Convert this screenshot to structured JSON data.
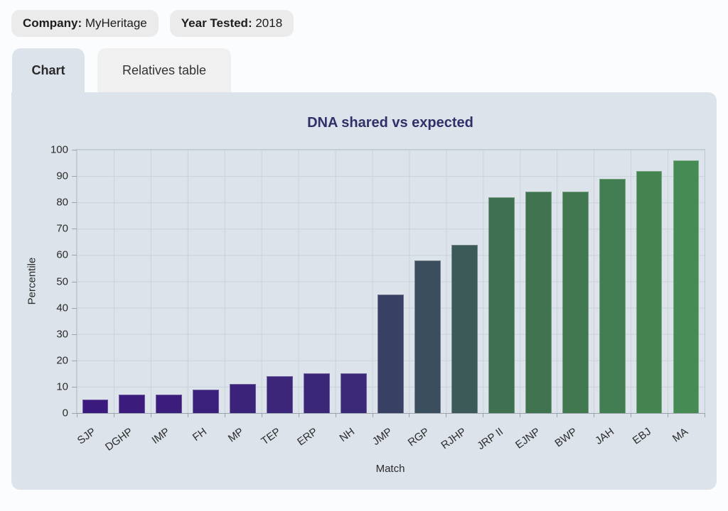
{
  "filters": {
    "company_label": "Company:",
    "company_value": " MyHeritage",
    "year_label": "Year Tested:",
    "year_value": " 2018"
  },
  "tabs": [
    {
      "label": "Chart",
      "active": true
    },
    {
      "label": "Relatives table",
      "active": false
    }
  ],
  "colors": {
    "panel_bg": "#dce3ea",
    "badge_bg": "#ebebeb",
    "inactive_tab_bg": "#f0f0f0",
    "grid_line": "#c9d2da",
    "axis_line": "#9aa3ab",
    "title_color": "#333069"
  },
  "chart_data": {
    "type": "bar",
    "title": "DNA shared vs expected",
    "xlabel": "Match",
    "ylabel": "Percentile",
    "ylim": [
      0,
      100
    ],
    "ytick_step": 10,
    "grid": true,
    "legend": false,
    "categories": [
      "SJP",
      "DGHP",
      "IMP",
      "FH",
      "MP",
      "TEP",
      "ERP",
      "NH",
      "JMP",
      "RGP",
      "RJHP",
      "JRP II",
      "EJNP",
      "BWP",
      "JAH",
      "EBJ",
      "MA"
    ],
    "values": [
      5,
      7,
      7,
      9,
      11,
      14,
      15,
      15,
      45,
      58,
      64,
      82,
      84,
      84,
      89,
      92,
      96
    ],
    "bar_colors": [
      "#3b1a7d",
      "#3b1c7d",
      "#3b1e7c",
      "#3b207b",
      "#3b237a",
      "#3b2679",
      "#3b2778",
      "#3a2977",
      "#384063",
      "#3a4e5d",
      "#3b5a58",
      "#3f7050",
      "#407450",
      "#417850",
      "#427e51",
      "#448451",
      "#468b53"
    ]
  }
}
